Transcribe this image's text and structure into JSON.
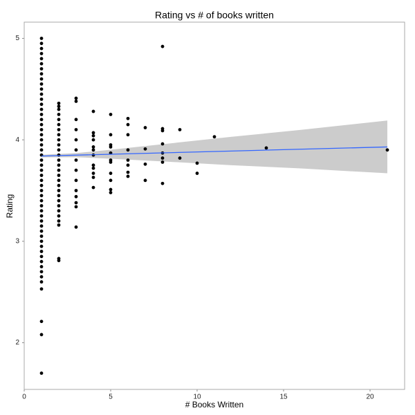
{
  "chart_data": {
    "type": "scatter",
    "title": "Rating vs # of books written",
    "x_label": "# Books Written",
    "y_label": "Rating",
    "xlim": [
      0,
      22
    ],
    "ylim": [
      1.54,
      5.16
    ],
    "xticks": [
      0,
      5,
      10,
      15,
      20
    ],
    "yticks": [
      2,
      3,
      4,
      5
    ],
    "grid": false,
    "point_color": "#000000",
    "groups": [
      {
        "x": 1,
        "y": [
          1.7,
          2.08,
          2.21,
          2.53,
          2.6,
          2.65,
          2.7,
          2.75,
          2.8,
          2.85,
          2.9,
          2.95,
          3.0,
          3.05,
          3.1,
          3.15,
          3.2,
          3.25,
          3.3,
          3.35,
          3.4,
          3.45,
          3.5,
          3.55,
          3.6,
          3.65,
          3.7,
          3.75,
          3.8,
          3.85,
          3.9,
          3.95,
          4.0,
          4.05,
          4.1,
          4.15,
          4.2,
          4.25,
          4.3,
          4.35,
          4.4,
          4.45,
          4.5,
          4.55,
          4.6,
          4.65,
          4.7,
          4.75,
          4.8,
          4.85,
          4.9,
          4.95,
          5.0
        ]
      },
      {
        "x": 2,
        "y": [
          2.81,
          2.83,
          3.16,
          3.2,
          3.25,
          3.3,
          3.35,
          3.4,
          3.45,
          3.5,
          3.55,
          3.6,
          3.65,
          3.7,
          3.75,
          3.8,
          3.85,
          3.9,
          3.95,
          4.0,
          4.05,
          4.1,
          4.15,
          4.2,
          4.25,
          4.3,
          4.33,
          4.36
        ]
      },
      {
        "x": 3,
        "y": [
          3.14,
          3.34,
          3.38,
          3.44,
          3.5,
          3.6,
          3.7,
          3.8,
          3.9,
          4.0,
          4.1,
          4.2,
          4.38,
          4.41
        ]
      },
      {
        "x": 4,
        "y": [
          3.53,
          3.63,
          3.67,
          3.72,
          3.75,
          3.85,
          3.9,
          3.93,
          4.0,
          4.04,
          4.07,
          4.28
        ]
      },
      {
        "x": 5,
        "y": [
          3.48,
          3.51,
          3.6,
          3.67,
          3.78,
          3.8,
          3.87,
          3.93,
          3.95,
          4.05,
          4.25
        ]
      },
      {
        "x": 6,
        "y": [
          3.64,
          3.68,
          3.75,
          3.8,
          3.9,
          4.05,
          4.15,
          4.21
        ]
      },
      {
        "x": 7,
        "y": [
          3.6,
          3.76,
          3.91,
          4.12
        ]
      },
      {
        "x": 8,
        "y": [
          3.57,
          3.78,
          3.82,
          3.87,
          3.96,
          4.09,
          4.11,
          4.92
        ]
      },
      {
        "x": 9,
        "y": [
          3.82,
          4.1
        ]
      },
      {
        "x": 10,
        "y": [
          3.67,
          3.77
        ]
      },
      {
        "x": 11,
        "y": [
          4.03
        ]
      },
      {
        "x": 14,
        "y": [
          3.92
        ]
      },
      {
        "x": 21,
        "y": [
          3.9
        ]
      }
    ],
    "fit": {
      "color": "#3366ff",
      "x": [
        1,
        21
      ],
      "y": [
        3.84,
        3.93
      ]
    },
    "band": {
      "color": "#cccccc",
      "x": [
        1,
        3,
        5,
        8,
        12,
        16,
        21
      ],
      "upper": [
        3.853,
        3.869,
        3.902,
        3.957,
        4.03,
        4.098,
        4.19
      ],
      "lower": [
        3.827,
        3.829,
        3.814,
        3.787,
        3.75,
        3.718,
        3.67
      ]
    }
  }
}
